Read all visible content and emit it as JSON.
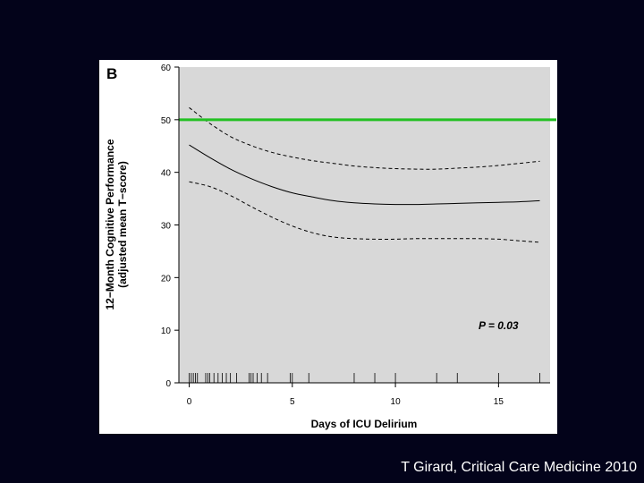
{
  "slide": {
    "citation": "T Girard, Critical Care Medicine 2010",
    "background_color": "#03031a"
  },
  "chart_data": {
    "type": "line",
    "panel_label": "B",
    "title": "",
    "xlabel": "Days of ICU Delirium",
    "ylabel_line1": "12−Month Cognitive Performance",
    "ylabel_line2": "(adjusted mean T−score)",
    "xlim": [
      -0.5,
      17.5
    ],
    "ylim": [
      0,
      60
    ],
    "x_ticks": [
      0,
      5,
      10,
      15
    ],
    "y_ticks": [
      0,
      10,
      20,
      30,
      40,
      50,
      60
    ],
    "grid": false,
    "plot_background": "#d8d8d8",
    "annotation": {
      "text": "P = 0.03",
      "x": 14,
      "y": 10
    },
    "reference_line": {
      "y": 50,
      "color": "#22c022"
    },
    "series": [
      {
        "name": "estimate",
        "style": "solid",
        "x": [
          0,
          1,
          2,
          3,
          4,
          5,
          6,
          7,
          8,
          9,
          10,
          11,
          12,
          13,
          14,
          15,
          16,
          17
        ],
        "values": [
          45.2,
          42.8,
          40.6,
          38.8,
          37.3,
          36.1,
          35.3,
          34.6,
          34.2,
          34.0,
          33.9,
          33.9,
          34.0,
          34.1,
          34.2,
          34.3,
          34.4,
          34.6
        ]
      },
      {
        "name": "upper_bound",
        "style": "dashed",
        "x": [
          0,
          1,
          2,
          3,
          4,
          5,
          6,
          7,
          8,
          9,
          10,
          11,
          12,
          13,
          14,
          15,
          16,
          17
        ],
        "values": [
          52.3,
          49.3,
          46.8,
          45.1,
          43.8,
          42.9,
          42.2,
          41.7,
          41.2,
          40.9,
          40.7,
          40.6,
          40.6,
          40.8,
          41.0,
          41.3,
          41.7,
          42.1
        ]
      },
      {
        "name": "lower_bound",
        "style": "dashed",
        "x": [
          0,
          1,
          2,
          3,
          4,
          5,
          6,
          7,
          8,
          9,
          10,
          11,
          12,
          13,
          14,
          15,
          16,
          17
        ],
        "values": [
          38.2,
          37.3,
          35.6,
          33.5,
          31.5,
          29.8,
          28.5,
          27.7,
          27.4,
          27.3,
          27.3,
          27.4,
          27.4,
          27.4,
          27.4,
          27.3,
          27.0,
          26.7
        ]
      }
    ],
    "rug": [
      0.0,
      0.1,
      0.2,
      0.3,
      0.4,
      0.8,
      0.9,
      1.0,
      1.2,
      1.4,
      1.6,
      1.8,
      2.0,
      2.3,
      2.9,
      3.0,
      3.1,
      3.3,
      3.5,
      3.8,
      4.9,
      5.0,
      5.8,
      8.0,
      9.0,
      10.0,
      12.0,
      13.0,
      15.0,
      17.0
    ]
  }
}
